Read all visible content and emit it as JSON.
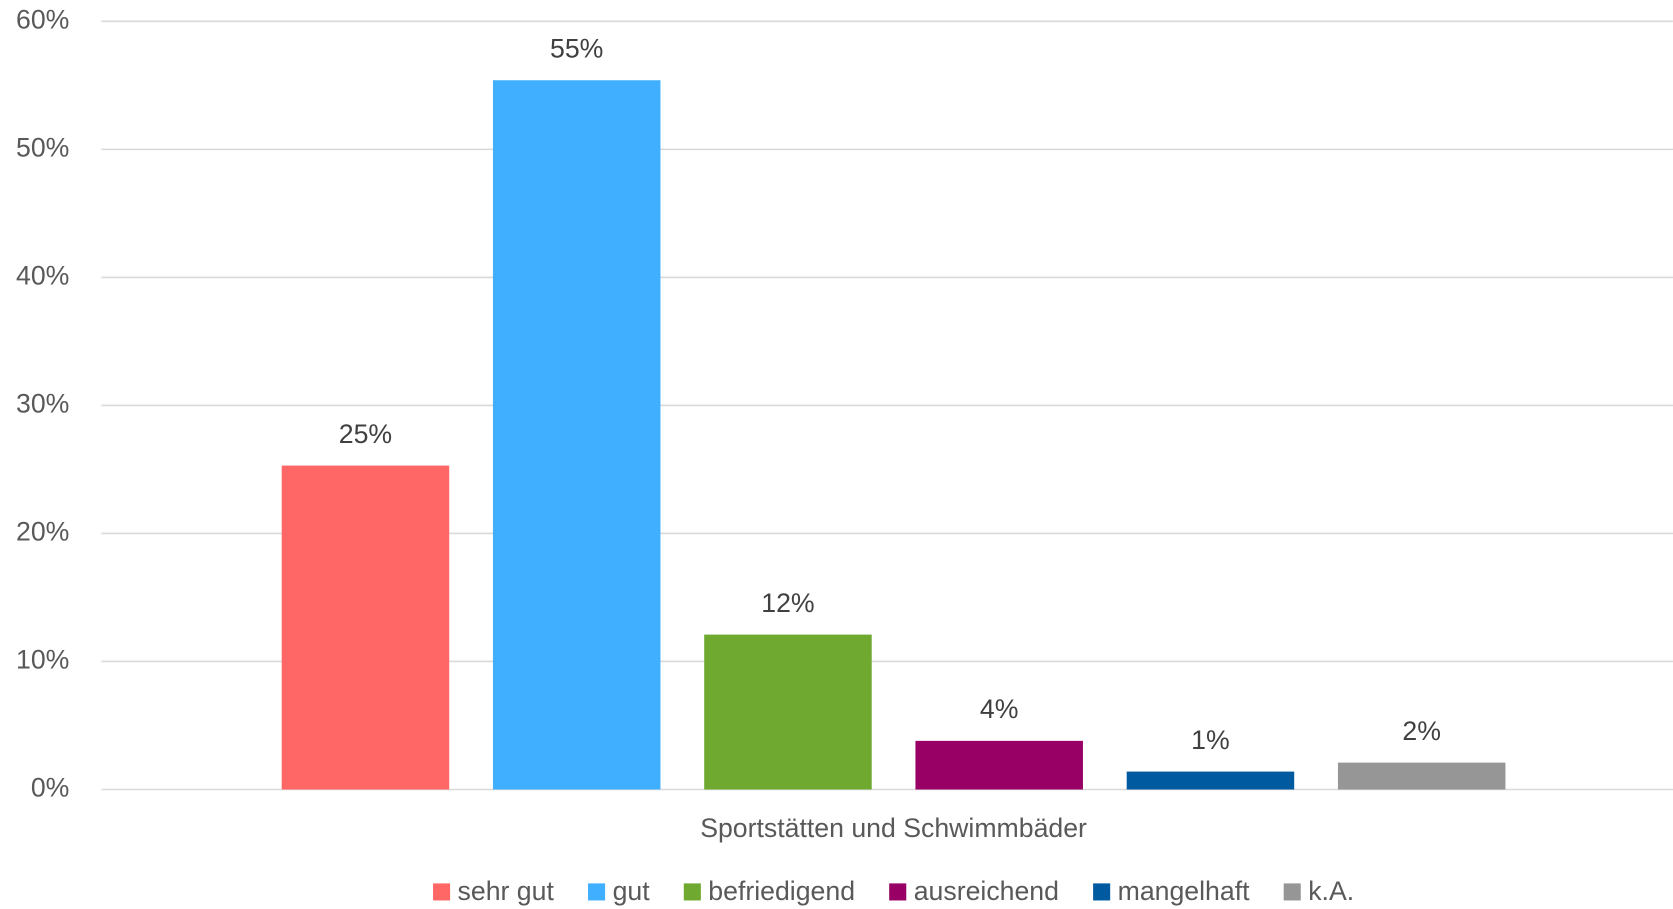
{
  "chart_data": {
    "type": "bar",
    "categories": [
      "Sportstätten und Schwimmbäder"
    ],
    "series": [
      {
        "name": "sehr gut",
        "color": "#ff6666",
        "values": [
          25.3
        ],
        "value_labels": [
          "25%"
        ]
      },
      {
        "name": "gut",
        "color": "#41afff",
        "values": [
          55.4
        ],
        "value_labels": [
          "55%"
        ]
      },
      {
        "name": "befriedigend",
        "color": "#6fa92f",
        "values": [
          12.1
        ],
        "value_labels": [
          "12%"
        ]
      },
      {
        "name": "ausreichend",
        "color": "#990066",
        "values": [
          3.8
        ],
        "value_labels": [
          "4%"
        ]
      },
      {
        "name": "mangelhaft",
        "color": "#005aa0",
        "values": [
          1.4
        ],
        "value_labels": [
          "1%"
        ]
      },
      {
        "name": "k.A.",
        "color": "#969696",
        "values": [
          2.1
        ],
        "value_labels": [
          "2%"
        ]
      }
    ],
    "ylim": [
      0,
      60
    ],
    "yticks": [
      {
        "value": 0,
        "label": "0%"
      },
      {
        "value": 10,
        "label": "10%"
      },
      {
        "value": 20,
        "label": "20%"
      },
      {
        "value": 30,
        "label": "30%"
      },
      {
        "value": 40,
        "label": "40%"
      },
      {
        "value": 50,
        "label": "50%"
      },
      {
        "value": 60,
        "label": "60%"
      }
    ],
    "grid": true,
    "legend": "bottom"
  }
}
